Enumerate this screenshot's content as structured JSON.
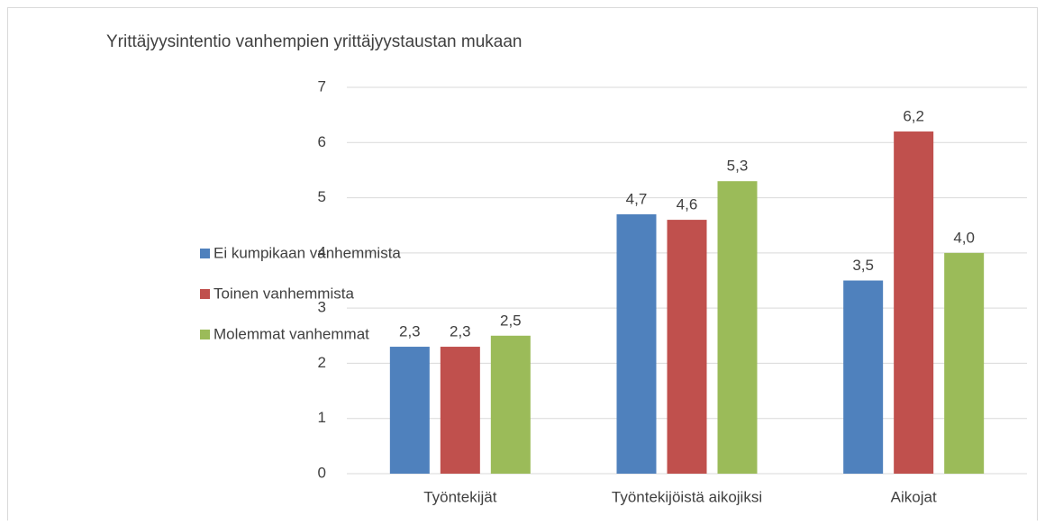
{
  "chart_data": {
    "type": "bar",
    "title": "Yrittäjyysintentio vanhempien yrittäjyystaustan mukaan",
    "categories": [
      "Työntekijät",
      "Työntekijöistä aikojiksi",
      "Aikojat"
    ],
    "series": [
      {
        "name": "Ei kumpikaan vanhemmista",
        "color": "#4f81bd",
        "values": [
          2.3,
          4.7,
          3.5
        ],
        "value_labels": [
          "2,3",
          "4,7",
          "3,5"
        ]
      },
      {
        "name": "Toinen vanhemmista",
        "color": "#c0504d",
        "values": [
          2.3,
          4.6,
          6.2
        ],
        "value_labels": [
          "2,3",
          "4,6",
          "6,2"
        ]
      },
      {
        "name": "Molemmat vanhemmat",
        "color": "#9bbb59",
        "values": [
          2.5,
          5.3,
          4.0
        ],
        "value_labels": [
          "2,5",
          "5,3",
          "4,0"
        ]
      }
    ],
    "ylim": [
      0,
      7
    ],
    "yticks": [
      0,
      1,
      2,
      3,
      4,
      5,
      6,
      7
    ],
    "grid": true,
    "legend": "left"
  }
}
